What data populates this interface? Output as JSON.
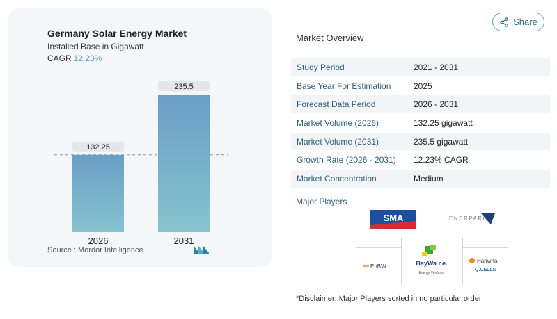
{
  "chart": {
    "title": "Germany Solar Energy Market",
    "subtitle": "Installed Base in Gigawatt",
    "cagr_label": "CAGR",
    "cagr_value": "12.23%",
    "source": "Source :  Mordor Intelligence",
    "bar_color_top": "#6a9fc6",
    "bar_color_bottom": "#86c3cf"
  },
  "chart_data": {
    "type": "bar",
    "categories": [
      "2026",
      "2031"
    ],
    "values": [
      132.25,
      235.5
    ],
    "value_labels": [
      "132.25",
      "235.5"
    ],
    "title": "Germany Solar Energy Market",
    "ylabel": "Installed Base in Gigawatt",
    "ylim": [
      0,
      235.5
    ],
    "grid": false
  },
  "share": {
    "label": "Share"
  },
  "overview": {
    "title": "Market Overview",
    "rows": [
      {
        "label": "Study Period",
        "value": "2021 - 2031"
      },
      {
        "label": "Base Year For Estimation",
        "value": "2025"
      },
      {
        "label": "Forecast Data Period",
        "value": "2026 - 2031"
      },
      {
        "label": "Market Volume (2026)",
        "value": "132.25 gigawatt"
      },
      {
        "label": "Market Volume (2031)",
        "value": "235.5 gigawatt"
      },
      {
        "label": "Growth Rate (2026 - 2031)",
        "value": "12.23% CAGR"
      },
      {
        "label": "Market Concentration",
        "value": "Medium"
      }
    ]
  },
  "players": {
    "title": "Major Players",
    "logos": {
      "sma": "SMA",
      "enerparc": "ENERPARC",
      "enbw": "EnBW",
      "baywa": "BayWa r.e.",
      "baywa_sub": "Energy Ventures",
      "hanwha": "Hanwha",
      "qcells": "Q.CELLS"
    }
  },
  "disclaimer": "*Disclaimer: Major Players sorted in no particular order"
}
